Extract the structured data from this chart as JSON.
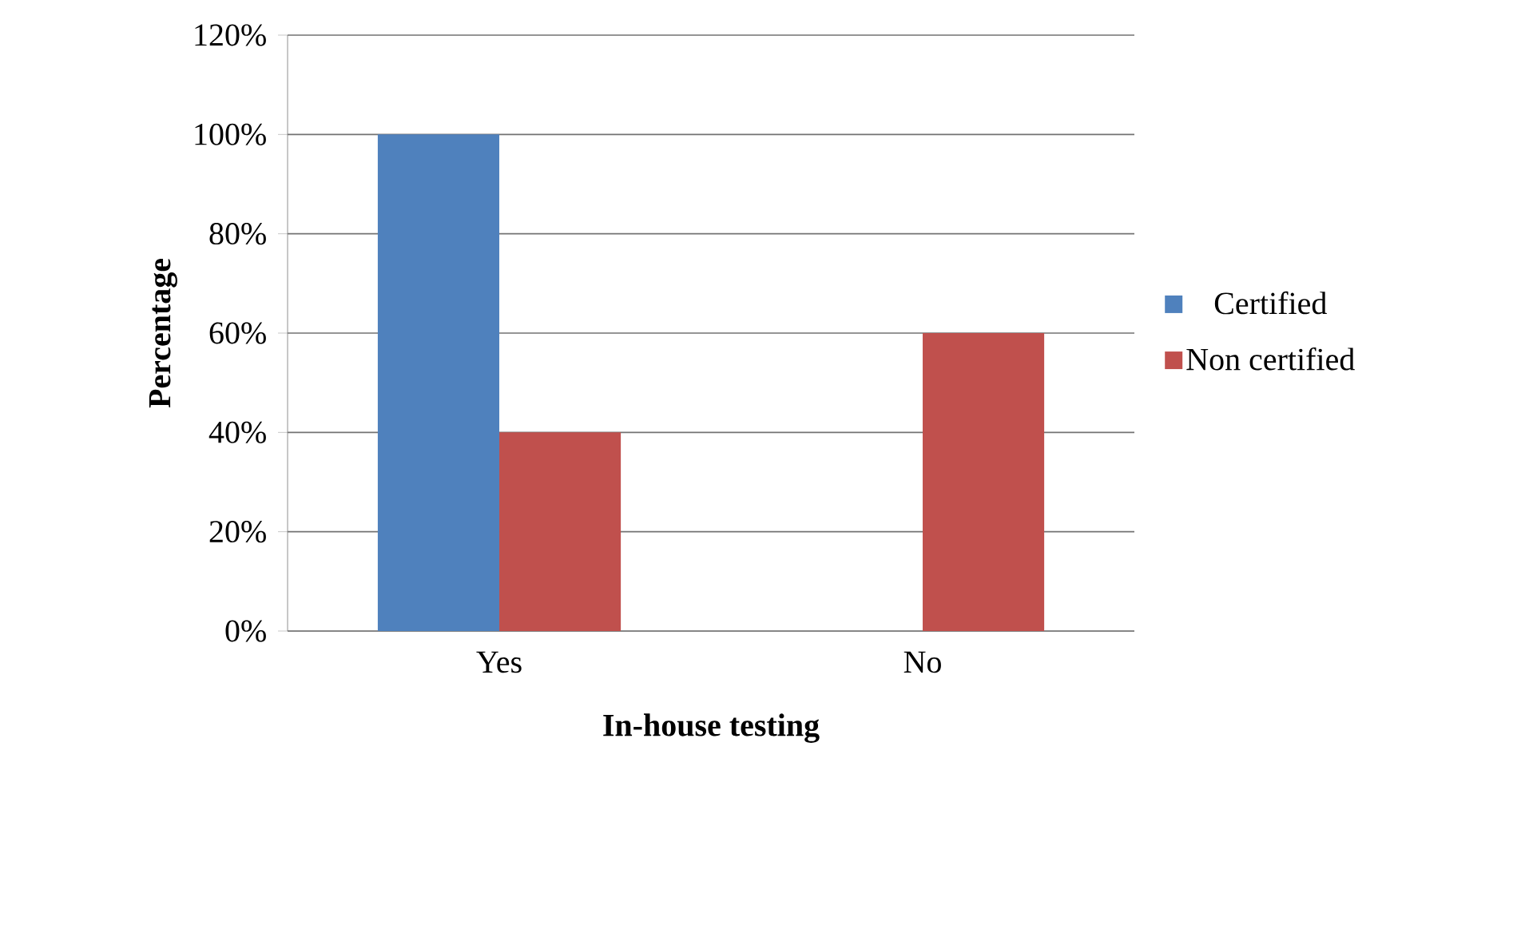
{
  "chart_data": {
    "type": "bar",
    "xlabel": "In-house testing",
    "ylabel": "Percentage",
    "categories": [
      "Yes",
      "No"
    ],
    "series": [
      {
        "name": "Certified",
        "color": "#4f81bd",
        "values": [
          100,
          0
        ]
      },
      {
        "name": "Non certified",
        "color": "#c0504d",
        "values": [
          40,
          60
        ]
      }
    ],
    "ylim": [
      0,
      120
    ],
    "yticks": [
      {
        "value": 0,
        "label": "0%"
      },
      {
        "value": 20,
        "label": "20%"
      },
      {
        "value": 40,
        "label": "40%"
      },
      {
        "value": 60,
        "label": "60%"
      },
      {
        "value": 80,
        "label": "80%"
      },
      {
        "value": 100,
        "label": "100%"
      },
      {
        "value": 120,
        "label": "120%"
      }
    ],
    "grid": "y",
    "legend": "right"
  }
}
